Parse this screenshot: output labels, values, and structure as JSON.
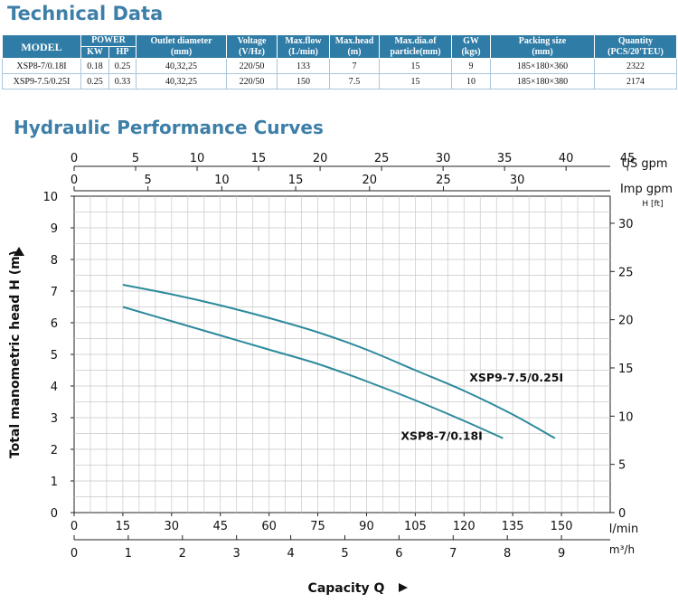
{
  "sections": {
    "technical_title": "Technical Data",
    "hydraulic_title": "Hydraulic Performance Curves"
  },
  "table": {
    "headers": {
      "model": "MODEL",
      "power": "POWER",
      "kw": "KW",
      "hp": "HP",
      "outlet": "Outlet diameter",
      "outlet_unit": "(mm)",
      "voltage": "Voltage",
      "voltage_unit": "(V/Hz)",
      "flow": "Max.flow",
      "flow_unit": "(L/min)",
      "head": "Max.head",
      "head_unit": "(m)",
      "particle": "Max.dia.of",
      "particle_unit": "particle(mm)",
      "gw": "GW",
      "gw_unit": "(kgs)",
      "packing": "Packing size",
      "packing_unit": "(mm)",
      "quantity": "Quantity",
      "quantity_unit": "(PCS/20'TEU)"
    },
    "rows": [
      {
        "model": "XSP8-7/0.18I",
        "kw": "0.18",
        "hp": "0.25",
        "outlet": "40,32,25",
        "voltage": "220/50",
        "flow": "133",
        "head": "7",
        "particle": "15",
        "gw": "9",
        "packing": "185×180×360",
        "quantity": "2322"
      },
      {
        "model": "XSP9-7.5/0.25I",
        "kw": "0.25",
        "hp": "0.33",
        "outlet": "40,32,25",
        "voltage": "220/50",
        "flow": "150",
        "head": "7.5",
        "particle": "15",
        "gw": "10",
        "packing": "185×180×380",
        "quantity": "2174"
      }
    ]
  },
  "chart_data": {
    "type": "line",
    "xlabel": "Capacity Q",
    "ylabel": "Total manometric head H (m)",
    "x_unit": "l/min",
    "xlim": [
      0,
      165
    ],
    "ylim": [
      0,
      10
    ],
    "grid": true,
    "x_ticks": [
      0,
      15,
      30,
      45,
      60,
      75,
      90,
      105,
      120,
      135,
      150
    ],
    "y_ticks": [
      0,
      1,
      2,
      3,
      4,
      5,
      6,
      7,
      8,
      9,
      10
    ],
    "secondary_axes": {
      "us_gpm": {
        "label": "US gpm",
        "ticks": [
          0,
          5,
          10,
          15,
          20,
          25,
          30,
          35,
          40,
          45
        ]
      },
      "imp_gpm": {
        "label": "Imp gpm",
        "ticks": [
          0,
          5,
          10,
          15,
          20,
          25,
          30
        ]
      },
      "m3h": {
        "label": "m³/h",
        "ticks": [
          0,
          1,
          2,
          3,
          4,
          5,
          6,
          7,
          8,
          9
        ]
      },
      "ft": {
        "label": "H [ft]",
        "ticks": [
          0,
          5,
          10,
          15,
          20,
          25,
          30
        ]
      }
    },
    "series": [
      {
        "name": "XSP9-7.5/0.25I",
        "color": "#2c8a9c",
        "points": [
          [
            15,
            7.2
          ],
          [
            30,
            6.9
          ],
          [
            45,
            6.55
          ],
          [
            60,
            6.15
          ],
          [
            75,
            5.7
          ],
          [
            90,
            5.15
          ],
          [
            105,
            4.5
          ],
          [
            120,
            3.85
          ],
          [
            135,
            3.1
          ],
          [
            148,
            2.35
          ]
        ]
      },
      {
        "name": "XSP8-7/0.18I",
        "color": "#2c8a9c",
        "points": [
          [
            15,
            6.5
          ],
          [
            30,
            6.05
          ],
          [
            45,
            5.6
          ],
          [
            60,
            5.15
          ],
          [
            75,
            4.7
          ],
          [
            90,
            4.15
          ],
          [
            105,
            3.55
          ],
          [
            120,
            2.9
          ],
          [
            132,
            2.35
          ]
        ]
      }
    ],
    "line_color": "#2c8a9c",
    "axis_color": "#222222",
    "grid_color": "#c8c8c8"
  }
}
